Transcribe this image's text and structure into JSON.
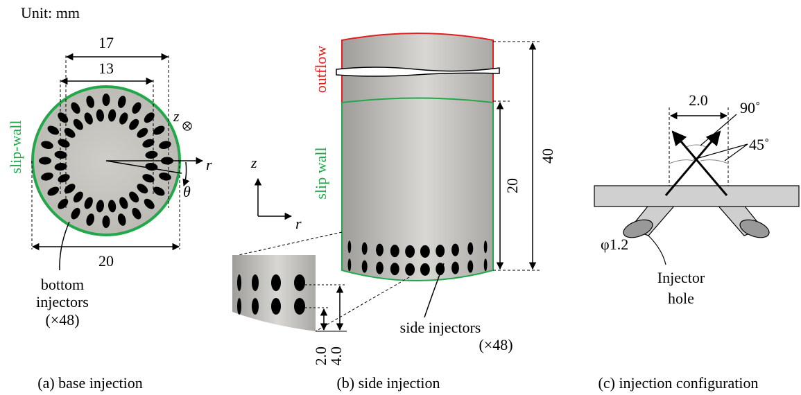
{
  "unit": "Unit: mm",
  "panel_a": {
    "dim_outer": "17",
    "dim_inner": "13",
    "dim_diameter": "20",
    "wall_label": "slip-wall",
    "axis_z": "z",
    "axis_r": "r",
    "axis_theta": "θ",
    "injector_label": [
      "bottom",
      "injectors",
      "(×48)"
    ],
    "caption": "(a) base injection"
  },
  "panel_b": {
    "outflow_label": "outflow",
    "wall_label": "slip wall",
    "axis_z": "z",
    "axis_r": "r",
    "dim_total": "40",
    "dim_side": "20",
    "dim_small": "2.0",
    "dim_large": "4.0",
    "injector_label": [
      "side injectors",
      "(×48)"
    ],
    "caption": "(b) side injection"
  },
  "panel_c": {
    "dim_spacing": "2.0",
    "angle_between": "90˚",
    "angle_wall": "45˚",
    "hole_diameter": "φ1.2",
    "hole_label": [
      "Injector",
      "hole"
    ],
    "caption": "(c) injection configuration"
  }
}
